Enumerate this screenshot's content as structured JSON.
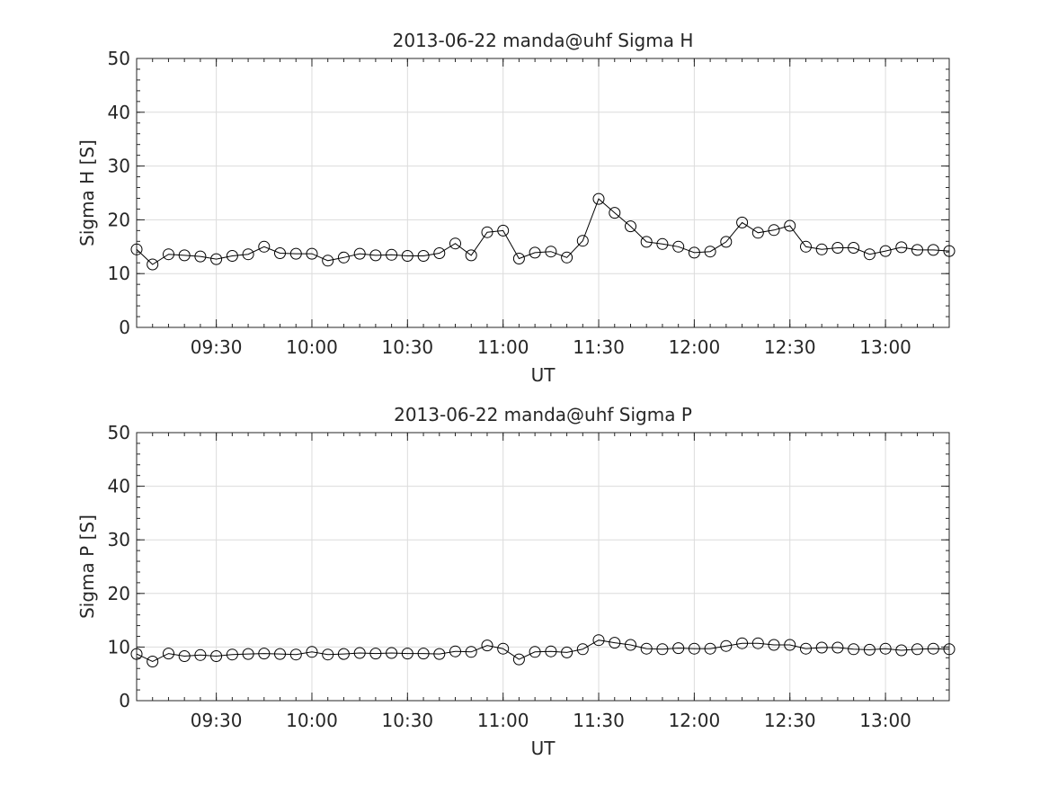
{
  "chart_data": [
    {
      "type": "line",
      "title": "2013-06-22  manda@uhf Sigma H",
      "xlabel": "UT",
      "ylabel": "Sigma H [S]",
      "xlim": [
        "09:05",
        "13:20"
      ],
      "ylim": [
        0,
        50
      ],
      "yticks": [
        0,
        10,
        20,
        30,
        40,
        50
      ],
      "xticks": [
        "09:30",
        "10:00",
        "10:30",
        "11:00",
        "11:30",
        "12:00",
        "12:30",
        "13:00"
      ],
      "grid": true,
      "marker": "open-circle",
      "line_color": "#000000",
      "x": [
        "09:05",
        "09:10",
        "09:15",
        "09:20",
        "09:25",
        "09:30",
        "09:35",
        "09:40",
        "09:45",
        "09:50",
        "09:55",
        "10:00",
        "10:05",
        "10:10",
        "10:15",
        "10:20",
        "10:25",
        "10:30",
        "10:35",
        "10:40",
        "10:45",
        "10:50",
        "10:55",
        "11:00",
        "11:05",
        "11:10",
        "11:15",
        "11:20",
        "11:25",
        "11:30",
        "11:35",
        "11:40",
        "11:45",
        "11:50",
        "11:55",
        "12:00",
        "12:05",
        "12:10",
        "12:15",
        "12:20",
        "12:25",
        "12:30",
        "12:35",
        "12:40",
        "12:45",
        "12:50",
        "12:55",
        "13:00",
        "13:05",
        "13:10",
        "13:15",
        "13:20"
      ],
      "values": [
        14.5,
        11.7,
        13.6,
        13.4,
        13.2,
        12.7,
        13.3,
        13.6,
        15.0,
        13.8,
        13.7,
        13.7,
        12.4,
        13.0,
        13.7,
        13.4,
        13.5,
        13.3,
        13.3,
        13.8,
        15.6,
        13.4,
        17.7,
        18.0,
        12.8,
        13.9,
        14.1,
        13.0,
        16.1,
        23.9,
        21.3,
        18.8,
        15.9,
        15.5,
        15.0,
        13.9,
        14.1,
        15.9,
        19.5,
        17.6,
        18.1,
        18.9,
        15.0,
        14.5,
        14.8,
        14.8,
        13.6,
        14.2,
        14.9,
        14.4,
        14.4,
        14.2
      ]
    },
    {
      "type": "line",
      "title": "2013-06-22  manda@uhf Sigma P",
      "xlabel": "UT",
      "ylabel": "Sigma P [S]",
      "xlim": [
        "09:05",
        "13:20"
      ],
      "ylim": [
        0,
        50
      ],
      "yticks": [
        0,
        10,
        20,
        30,
        40,
        50
      ],
      "xticks": [
        "09:30",
        "10:00",
        "10:30",
        "11:00",
        "11:30",
        "12:00",
        "12:30",
        "13:00"
      ],
      "grid": true,
      "marker": "open-circle",
      "line_color": "#000000",
      "x": [
        "09:05",
        "09:10",
        "09:15",
        "09:20",
        "09:25",
        "09:30",
        "09:35",
        "09:40",
        "09:45",
        "09:50",
        "09:55",
        "10:00",
        "10:05",
        "10:10",
        "10:15",
        "10:20",
        "10:25",
        "10:30",
        "10:35",
        "10:40",
        "10:45",
        "10:50",
        "10:55",
        "11:00",
        "11:05",
        "11:10",
        "11:15",
        "11:20",
        "11:25",
        "11:30",
        "11:35",
        "11:40",
        "11:45",
        "11:50",
        "11:55",
        "12:00",
        "12:05",
        "12:10",
        "12:15",
        "12:20",
        "12:25",
        "12:30",
        "12:35",
        "12:40",
        "12:45",
        "12:50",
        "12:55",
        "13:00",
        "13:05",
        "13:10",
        "13:15",
        "13:20"
      ],
      "values": [
        8.7,
        7.3,
        8.8,
        8.3,
        8.5,
        8.3,
        8.6,
        8.7,
        8.8,
        8.7,
        8.6,
        9.1,
        8.6,
        8.7,
        8.9,
        8.8,
        8.9,
        8.8,
        8.8,
        8.7,
        9.2,
        9.1,
        10.3,
        9.7,
        7.7,
        9.1,
        9.2,
        9.0,
        9.6,
        11.3,
        10.8,
        10.4,
        9.7,
        9.6,
        9.8,
        9.7,
        9.7,
        10.2,
        10.7,
        10.7,
        10.4,
        10.4,
        9.7,
        9.9,
        9.9,
        9.6,
        9.5,
        9.7,
        9.4,
        9.6,
        9.7,
        9.6
      ]
    }
  ]
}
